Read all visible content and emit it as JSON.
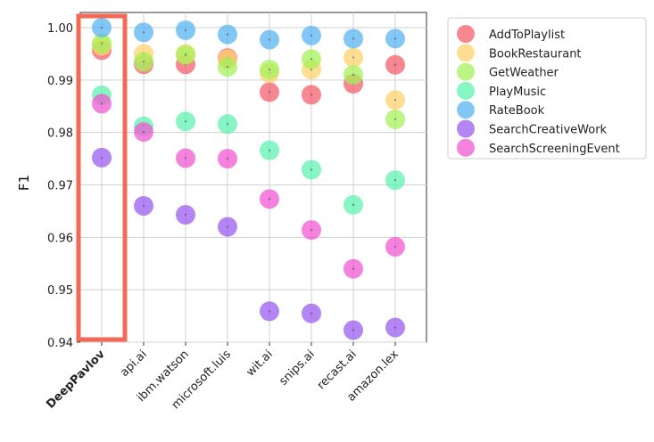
{
  "chart_data": {
    "type": "scatter",
    "title": "",
    "xlabel": "",
    "ylabel": "F1",
    "ylim": [
      0.94,
      1.0
    ],
    "yticks": [
      "0.94",
      "0.95",
      "0.96",
      "0.97",
      "0.98",
      "0.99",
      "1.00"
    ],
    "grid": true,
    "legend_position": "top-right-outside",
    "categories": [
      "DeepPavlov",
      "api.ai",
      "ibm.watson",
      "microsoft.luis",
      "wit.ai",
      "snips.ai",
      "recast.ai",
      "amazon.lex"
    ],
    "highlighted_category": "DeepPavlov",
    "highlight_color": "#f26a55",
    "highlight_label_color": "#1a2f6b",
    "series": [
      {
        "name": "AddToPlaylist",
        "color": "#f4606c",
        "values": [
          0.9957,
          0.993,
          0.993,
          0.9942,
          0.9877,
          0.9872,
          0.9893,
          0.9929
        ]
      },
      {
        "name": "BookRestaurant",
        "color": "#fdd36e",
        "values": [
          0.9965,
          0.995,
          0.995,
          0.994,
          0.9913,
          0.992,
          0.9943,
          0.9862
        ]
      },
      {
        "name": "GetWeather",
        "color": "#a5f25a",
        "values": [
          0.997,
          0.9935,
          0.9948,
          0.9925,
          0.992,
          0.994,
          0.991,
          0.9825
        ]
      },
      {
        "name": "PlayMusic",
        "color": "#5ff2b0",
        "values": [
          0.9871,
          0.9812,
          0.9821,
          0.9816,
          0.9766,
          0.9729,
          0.9662,
          0.9709
        ]
      },
      {
        "name": "RateBook",
        "color": "#5ab5f2",
        "values": [
          1.0,
          0.9991,
          0.9995,
          0.9987,
          0.9977,
          0.9985,
          0.9979,
          0.9979
        ]
      },
      {
        "name": "SearchCreativeWork",
        "color": "#9a5ef0",
        "values": [
          0.9752,
          0.966,
          0.9643,
          0.962,
          0.9459,
          0.9455,
          0.9423,
          0.9428
        ]
      },
      {
        "name": "SearchScreeningEvent",
        "color": "#f25ad2",
        "values": [
          0.9855,
          0.9801,
          0.9751,
          0.975,
          0.9673,
          0.9614,
          0.954,
          0.9582
        ]
      }
    ]
  }
}
